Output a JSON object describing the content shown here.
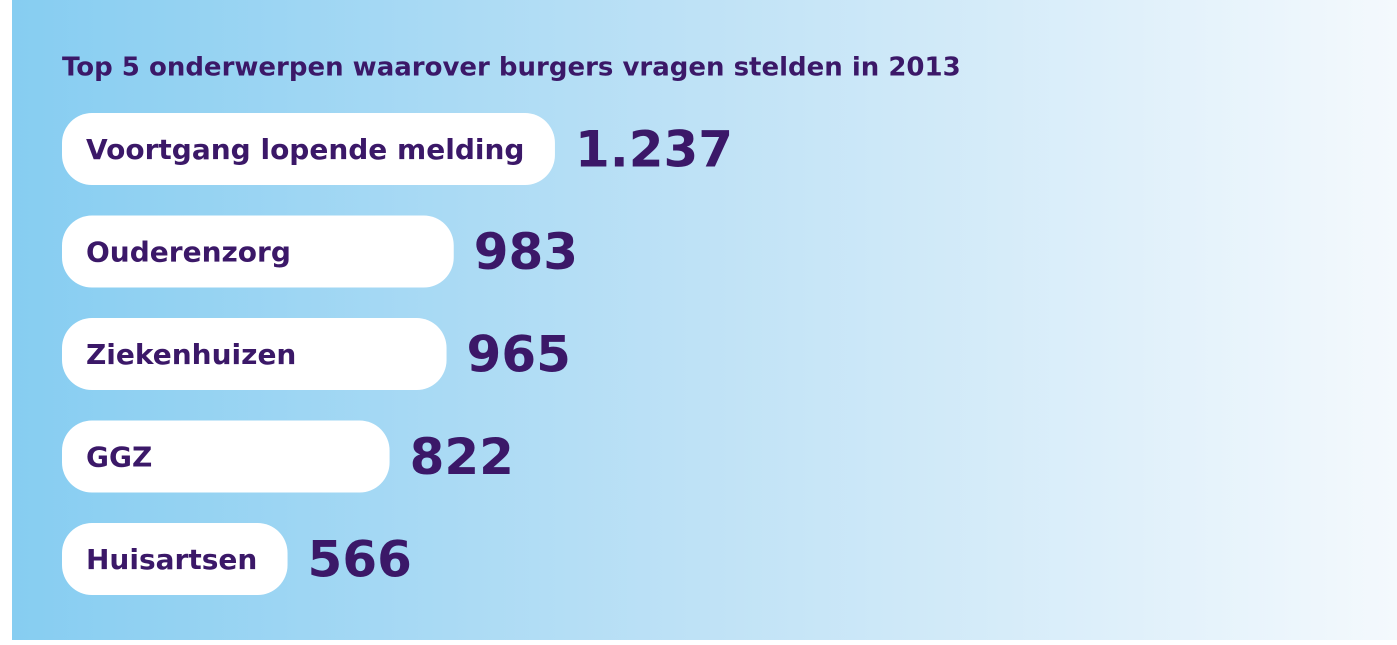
{
  "chart_data": {
    "type": "bar",
    "orientation": "horizontal",
    "title": "Top 5 onderwerpen waarover burgers vragen stelden in 2013",
    "categories": [
      "Voortgang lopende melding",
      "Ouderenzorg",
      "Ziekenhuizen",
      "GGZ",
      "Huisartsen"
    ],
    "values": [
      1237,
      983,
      965,
      822,
      566
    ],
    "value_labels": [
      "1.237",
      "983",
      "965",
      "822",
      "566"
    ],
    "color": "#ffffff"
  }
}
